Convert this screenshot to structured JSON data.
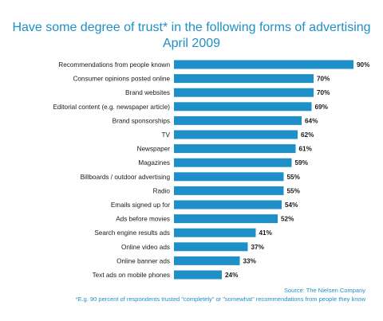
{
  "header": {
    "title_line1": "Have some degree of trust* in the following forms of advertising",
    "title_line2": "April 2009"
  },
  "footer": {
    "source": "Source: The Nielsen Company",
    "footnote": "*E.g. 90 percent of respondents trusted \"completely\" or \"somewhat\" recommendations from people they know"
  },
  "colors": {
    "bar": "#1f8fc8",
    "title": "#1f8fc8"
  },
  "chart_data": {
    "type": "bar",
    "orientation": "horizontal",
    "title": "Have some degree of trust* in the following forms of advertising",
    "subtitle": "April 2009",
    "categories": [
      "Recommendations from people known",
      "Consumer opinions posted online",
      "Brand websites",
      "Editorial content (e.g. newspaper article)",
      "Brand sponsorships",
      "TV",
      "Newspaper",
      "Magazines",
      "Billboards / outdoor advertising",
      "Radio",
      "Emails signed up for",
      "Ads before movies",
      "Search engine results ads",
      "Online video ads",
      "Online banner ads",
      "Text ads on mobile phones"
    ],
    "values": [
      90,
      70,
      70,
      69,
      64,
      62,
      61,
      59,
      55,
      55,
      54,
      52,
      41,
      37,
      33,
      24
    ],
    "value_labels": [
      "90%",
      "70%",
      "70%",
      "69%",
      "64%",
      "62%",
      "61%",
      "59%",
      "55%",
      "55%",
      "54%",
      "52%",
      "41%",
      "37%",
      "33%",
      "24%"
    ],
    "xlim": [
      0,
      90
    ],
    "grid": false,
    "legend": "none"
  }
}
